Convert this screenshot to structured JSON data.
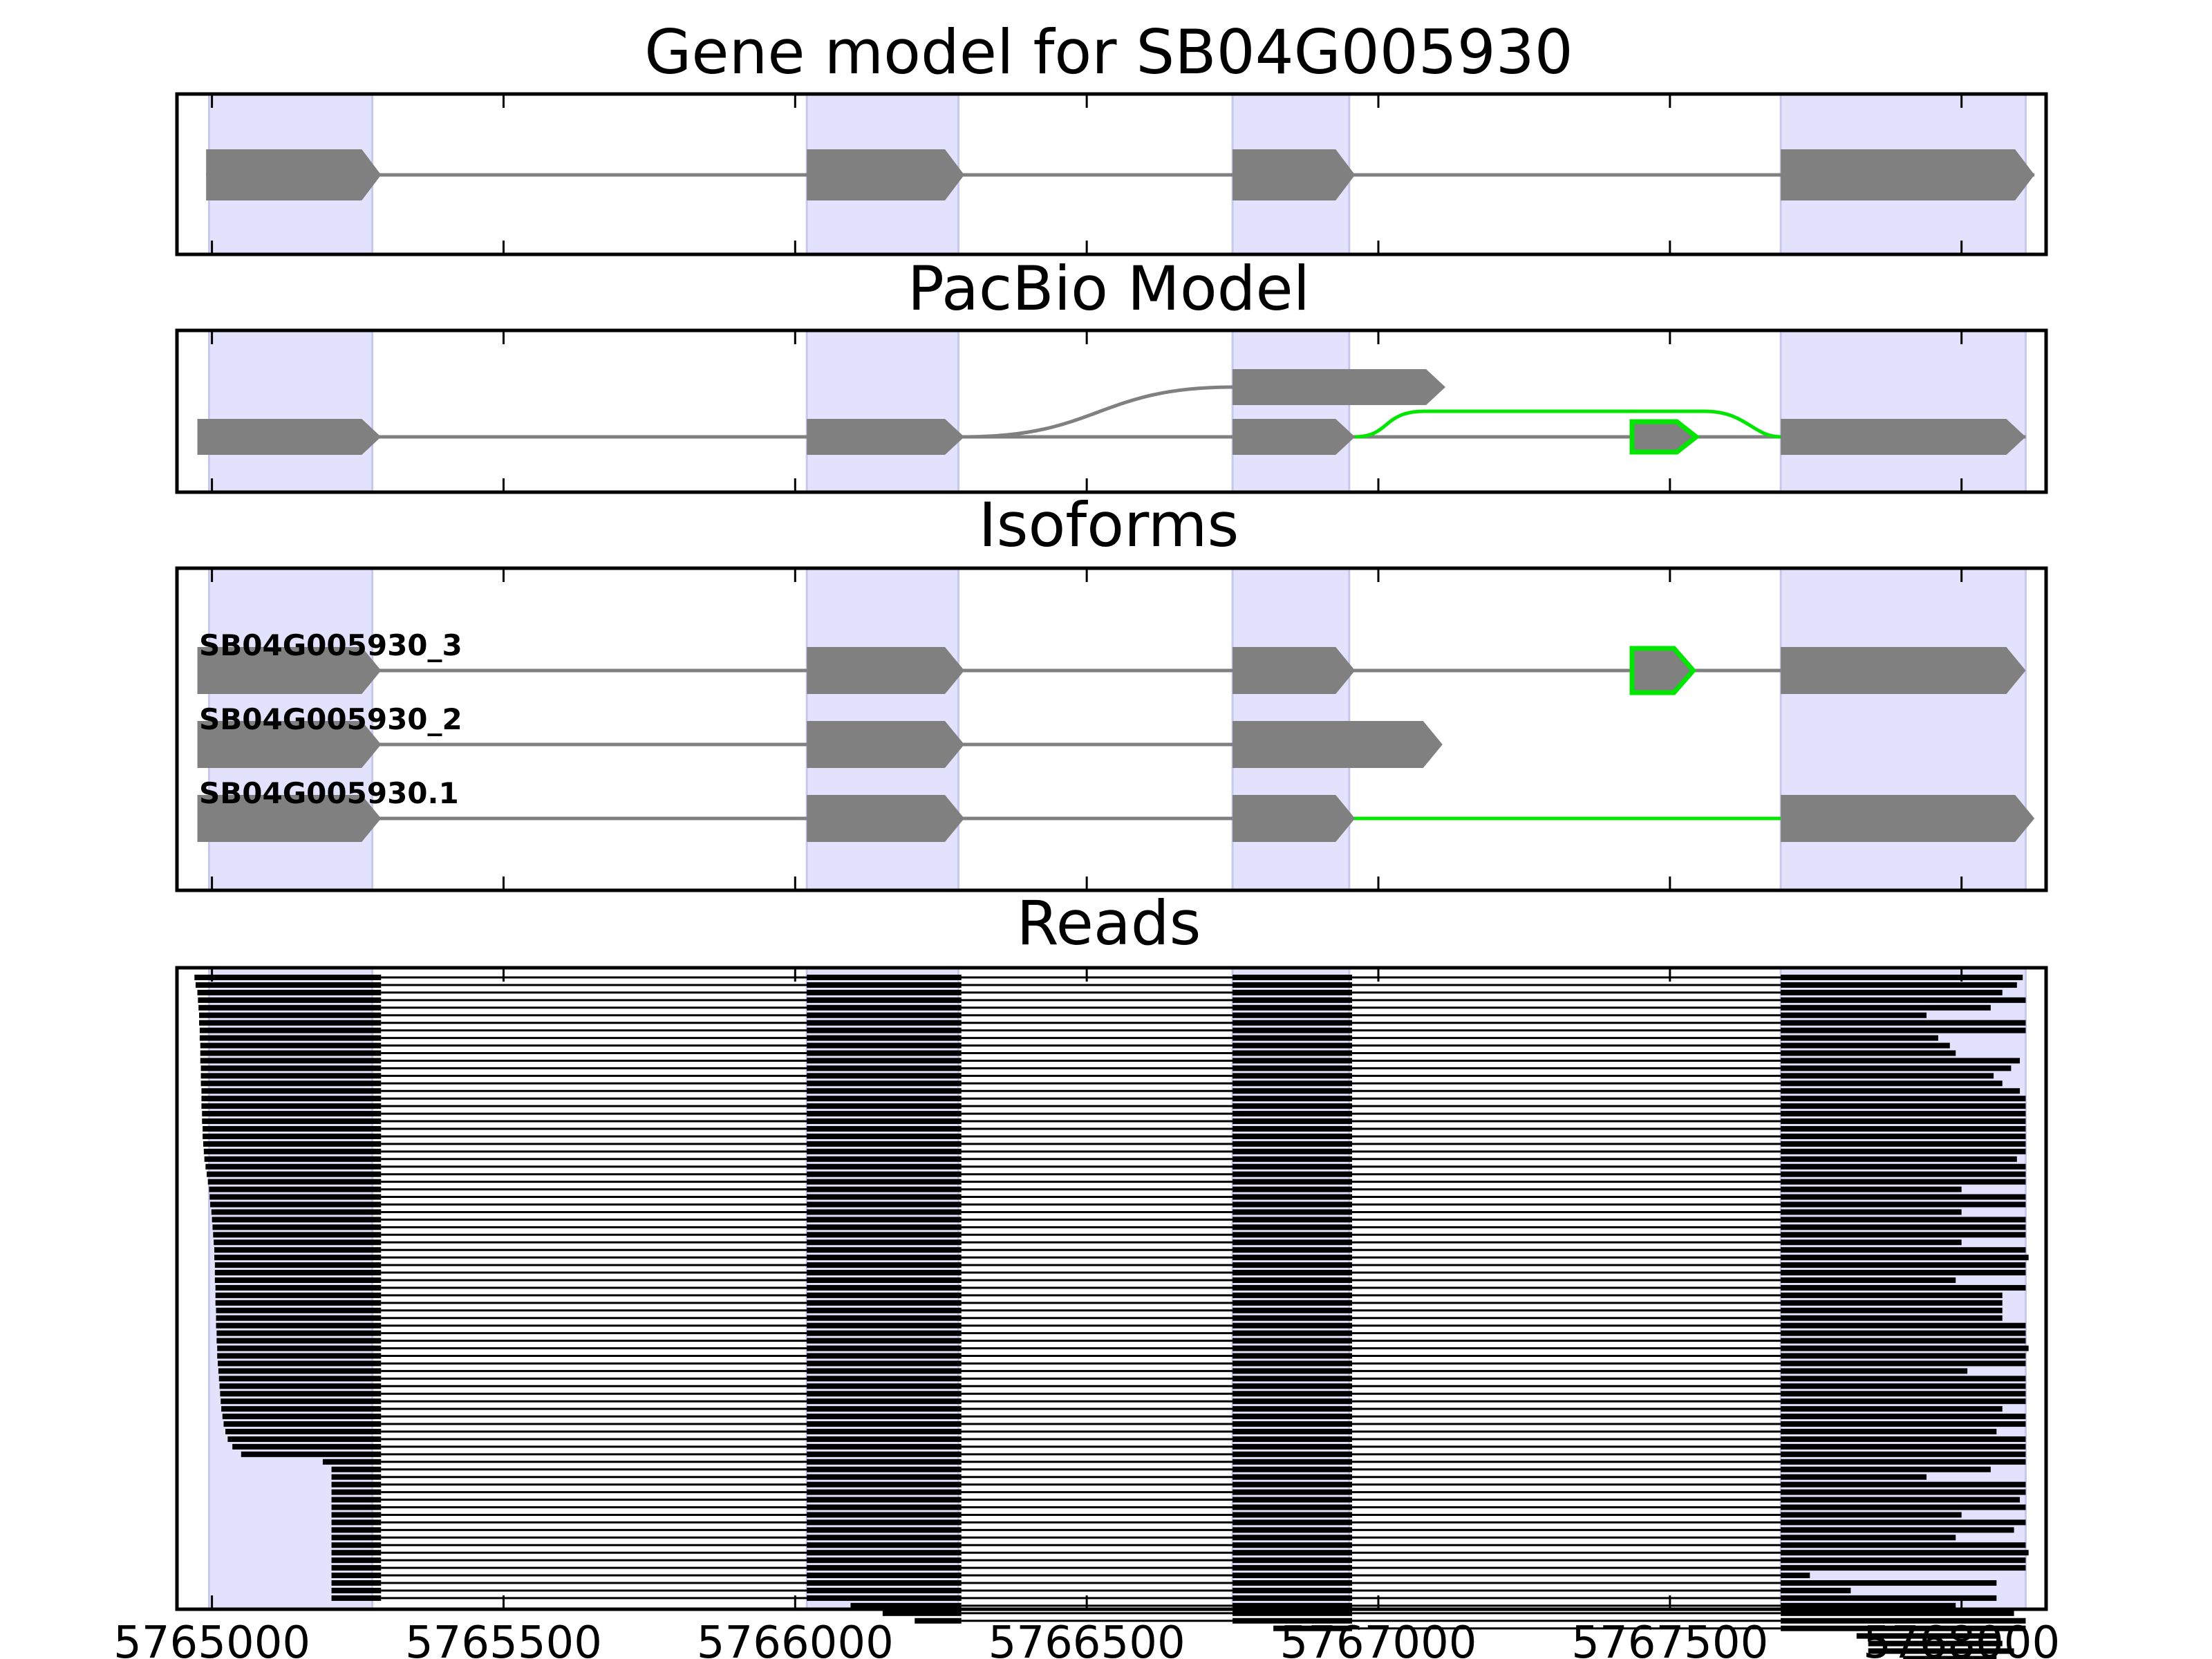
{
  "colors": {
    "exon": "#808080",
    "intron": "#808080",
    "alt": "#00e600",
    "band": "#e2e2fc",
    "band_edge": "#c8c8ee",
    "read": "#000000",
    "frame": "#000000"
  },
  "chart_data": {
    "type": "gene-structure",
    "xlim": [
      5764940,
      5768145
    ],
    "xticks": [
      5765000,
      5765500,
      5766000,
      5766500,
      5767000,
      5767500,
      5768000
    ],
    "xtick_labels": [
      "5765000",
      "5765500",
      "5766000",
      "5766500",
      "5767000",
      "5767500",
      "5768000"
    ],
    "bands": [
      [
        5764995,
        5765275
      ],
      [
        5766020,
        5766280
      ],
      [
        5766750,
        5766950
      ],
      [
        5767690,
        5768110
      ]
    ],
    "gene_model": {
      "title": "Gene model for SB04G005930",
      "exons": [
        [
          5764990,
          5765290
        ],
        [
          5766020,
          5766290
        ],
        [
          5766750,
          5766960
        ],
        [
          5767690,
          5768125
        ]
      ]
    },
    "pacbio_model": {
      "title": "PacBio Model",
      "main_exons": [
        [
          5764975,
          5765290
        ],
        [
          5766020,
          5766290
        ],
        [
          5766750,
          5766960
        ],
        [
          5767690,
          5768110
        ]
      ],
      "alt_branch_exon": [
        5766750,
        5767115
      ],
      "alt_green_exon": [
        5767435,
        5767545
      ]
    },
    "isoforms": {
      "title": "Isoforms",
      "rows": [
        {
          "name": "SB04G005930_3",
          "exons": [
            [
              5764975,
              5765290
            ],
            [
              5766020,
              5766290
            ],
            [
              5766750,
              5766960
            ],
            [
              5767435,
              5767540
            ],
            [
              5767690,
              5768110
            ]
          ],
          "green": [
            3
          ],
          "green_introns": []
        },
        {
          "name": "SB04G005930_2",
          "exons": [
            [
              5764975,
              5765290
            ],
            [
              5766020,
              5766290
            ],
            [
              5766750,
              5767110
            ]
          ],
          "green": [],
          "green_introns": []
        },
        {
          "name": "SB04G005930.1",
          "exons": [
            [
              5764975,
              5765290
            ],
            [
              5766020,
              5766290
            ],
            [
              5766750,
              5766960
            ],
            [
              5767690,
              5768125
            ]
          ],
          "green": [],
          "green_introns": [
            2
          ]
        }
      ]
    },
    "reads": {
      "title": "Reads",
      "count": 83,
      "exon_blocks": [
        [
          5766020,
          5766285
        ],
        [
          5766750,
          5766955
        ]
      ],
      "first_exon_end": 5765290,
      "last_exon_start": 5767690,
      "read_starts": [
        5764970,
        5764972,
        5764975,
        5764976,
        5764977,
        5764978,
        5764978,
        5764979,
        5764979,
        5764980,
        5764980,
        5764980,
        5764981,
        5764981,
        5764981,
        5764982,
        5764982,
        5764982,
        5764983,
        5764983,
        5764984,
        5764984,
        5764985,
        5764986,
        5764987,
        5764989,
        5764991,
        5764993,
        5764995,
        5764996,
        5764997,
        5764999,
        5765000,
        5765001,
        5765002,
        5765003,
        5765004,
        5765004,
        5765005,
        5765005,
        5765005,
        5765006,
        5765006,
        5765006,
        5765007,
        5765007,
        5765007,
        5765008,
        5765008,
        5765009,
        5765009,
        5765010,
        5765011,
        5765012,
        5765013,
        5765014,
        5765015,
        5765016,
        5765018,
        5765020,
        5765023,
        5765027,
        5765035,
        5765050,
        5765190,
        5765205
      ],
      "read_ends": [
        5768105,
        5768095,
        5768070,
        5768110,
        5768050,
        5767940,
        5768110,
        5768110,
        5767960,
        5767980,
        5767990,
        5768100,
        5768085,
        5768055,
        5768070,
        5768100,
        5768110,
        5768110,
        5768110,
        5768110,
        5768110,
        5768110,
        5768110,
        5768110,
        5768095,
        5768110,
        5768110,
        5768110,
        5768000,
        5768110,
        5768110,
        5768000,
        5768110,
        5768110,
        5768110,
        5768000,
        5768110,
        5768115,
        5768110,
        5768110,
        5767990,
        5768110,
        5768070,
        5768070,
        5768070,
        5768070,
        5768110,
        5768110,
        5768110,
        5768115,
        5768110,
        5768110,
        5768010,
        5768110,
        5768110,
        5768110,
        5768110,
        5768070,
        5768110,
        5768110,
        5768060,
        5768110,
        5768110,
        5768110,
        5768110,
        5768050,
        5767940,
        5768110,
        5768110,
        5768100,
        5768110,
        5768000,
        5768110,
        5768090,
        5767990,
        5768110,
        5768115,
        5768110,
        5768110,
        5767740,
        5768060,
        5767810,
        5768060,
        5767850,
        5768080,
        5767850,
        5768090
      ],
      "tail_starts": [
        5766095,
        5766150,
        5766205,
        5766820,
        5767820,
        5767840,
        5767840
      ],
      "tail_ends": [
        5766285,
        5766285,
        5766285,
        5766955
      ]
    }
  }
}
